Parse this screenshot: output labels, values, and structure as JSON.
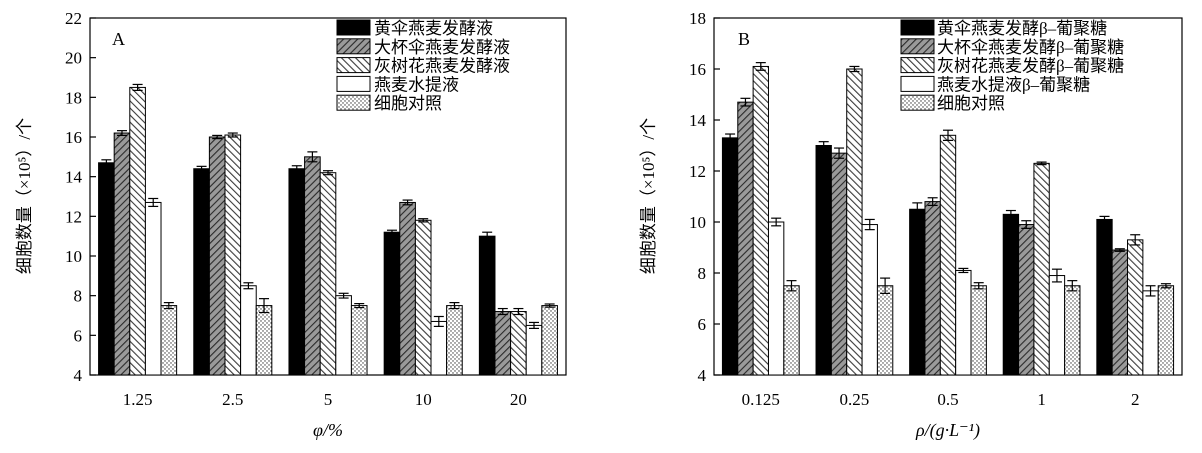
{
  "chart_data": [
    {
      "type": "bar",
      "panel_label": "A",
      "categories": [
        "1.25",
        "2.5",
        "5",
        "10",
        "20"
      ],
      "xlabel": "φ/%",
      "ylabel": "细胞数量（×10⁵）/个",
      "ylim": [
        4,
        22
      ],
      "yticks": [
        "4",
        "6",
        "8",
        "10",
        "12",
        "14",
        "16",
        "18",
        "20",
        "22"
      ],
      "legend_position": "top-right",
      "series": [
        {
          "name": "黄伞燕麦发酵液",
          "fill": "black",
          "values": [
            14.7,
            14.4,
            14.4,
            11.2,
            11.0
          ],
          "errors": [
            0.15,
            0.12,
            0.15,
            0.1,
            0.2
          ]
        },
        {
          "name": "大杯伞燕麦发酵液",
          "fill": "hatch-dense",
          "values": [
            16.2,
            16.0,
            15.0,
            12.7,
            7.2
          ],
          "errors": [
            0.12,
            0.08,
            0.25,
            0.12,
            0.15
          ]
        },
        {
          "name": "灰树花燕麦发酵液",
          "fill": "hatch-back",
          "values": [
            18.5,
            16.1,
            14.2,
            11.8,
            7.2
          ],
          "errors": [
            0.15,
            0.1,
            0.1,
            0.08,
            0.15
          ]
        },
        {
          "name": "燕麦水提液",
          "fill": "white",
          "values": [
            12.7,
            8.5,
            8.0,
            6.7,
            6.5
          ],
          "errors": [
            0.2,
            0.15,
            0.12,
            0.25,
            0.15
          ]
        },
        {
          "name": "细胞对照",
          "fill": "dots",
          "values": [
            7.5,
            7.5,
            7.5,
            7.5,
            7.5
          ],
          "errors": [
            0.15,
            0.35,
            0.1,
            0.15,
            0.08
          ]
        }
      ]
    },
    {
      "type": "bar",
      "panel_label": "B",
      "categories": [
        "0.125",
        "0.25",
        "0.5",
        "1",
        "2"
      ],
      "xlabel": "ρ/(g·L⁻¹)",
      "ylabel": "细胞数量（×10⁵）/个",
      "ylim": [
        4,
        18
      ],
      "yticks": [
        "4",
        "6",
        "8",
        "10",
        "12",
        "14",
        "16",
        "18"
      ],
      "legend_position": "top-right",
      "series": [
        {
          "name": "黄伞燕麦发酵β–葡聚糖",
          "fill": "black",
          "values": [
            13.3,
            13.0,
            10.5,
            10.3,
            10.1
          ],
          "errors": [
            0.15,
            0.15,
            0.25,
            0.15,
            0.12
          ]
        },
        {
          "name": "大杯伞燕麦发酵β–葡聚糖",
          "fill": "hatch-dense",
          "values": [
            14.7,
            12.7,
            10.8,
            9.9,
            8.9
          ],
          "errors": [
            0.15,
            0.2,
            0.15,
            0.15,
            0.05
          ]
        },
        {
          "name": "灰树花燕麦发酵β–葡聚糖",
          "fill": "hatch-back",
          "values": [
            16.1,
            16.0,
            13.4,
            12.3,
            9.3
          ],
          "errors": [
            0.15,
            0.1,
            0.2,
            0.05,
            0.2
          ]
        },
        {
          "name": "燕麦水提液β–葡聚糖",
          "fill": "white",
          "values": [
            10.0,
            9.9,
            8.1,
            7.9,
            7.3
          ],
          "errors": [
            0.15,
            0.2,
            0.08,
            0.25,
            0.2
          ]
        },
        {
          "name": "细胞对照",
          "fill": "dots",
          "values": [
            7.5,
            7.5,
            7.5,
            7.5,
            7.5
          ],
          "errors": [
            0.2,
            0.3,
            0.12,
            0.2,
            0.08
          ]
        }
      ]
    }
  ]
}
